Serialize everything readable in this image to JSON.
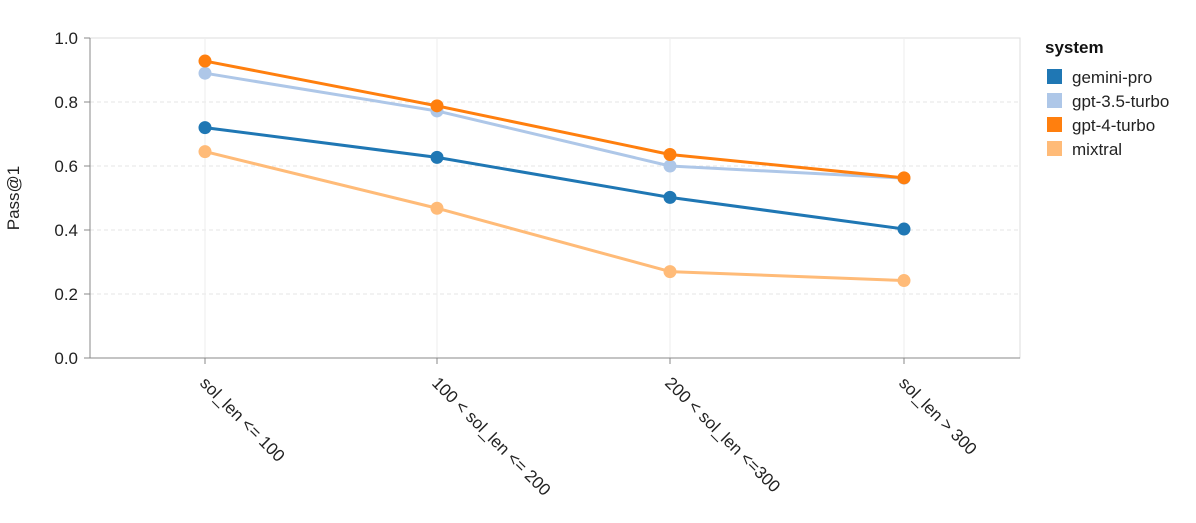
{
  "chart_data": {
    "type": "line",
    "ylabel": "Pass@1",
    "xlabel": "",
    "ylim": [
      0,
      1
    ],
    "yticks": [
      "0.0",
      "0.2",
      "0.4",
      "0.6",
      "0.8",
      "1.0"
    ],
    "grid": true,
    "legend_position": "right",
    "legend_title": "system",
    "categories": [
      "sol_len <= 100",
      "100 < sol_len <= 200",
      "200 < sol_len <=300",
      "sol_len > 300"
    ],
    "series": [
      {
        "name": "gemini-pro",
        "color": "#1f77b4",
        "values": [
          0.72,
          0.627,
          0.502,
          0.403
        ]
      },
      {
        "name": "gpt-3.5-turbo",
        "color": "#aec7e8",
        "values": [
          0.89,
          0.772,
          0.6,
          0.562
        ]
      },
      {
        "name": "gpt-4-turbo",
        "color": "#ff7f0e",
        "values": [
          0.928,
          0.788,
          0.636,
          0.563
        ]
      },
      {
        "name": "mixtral",
        "color": "#ffbb78",
        "values": [
          0.645,
          0.468,
          0.27,
          0.242
        ]
      }
    ]
  }
}
